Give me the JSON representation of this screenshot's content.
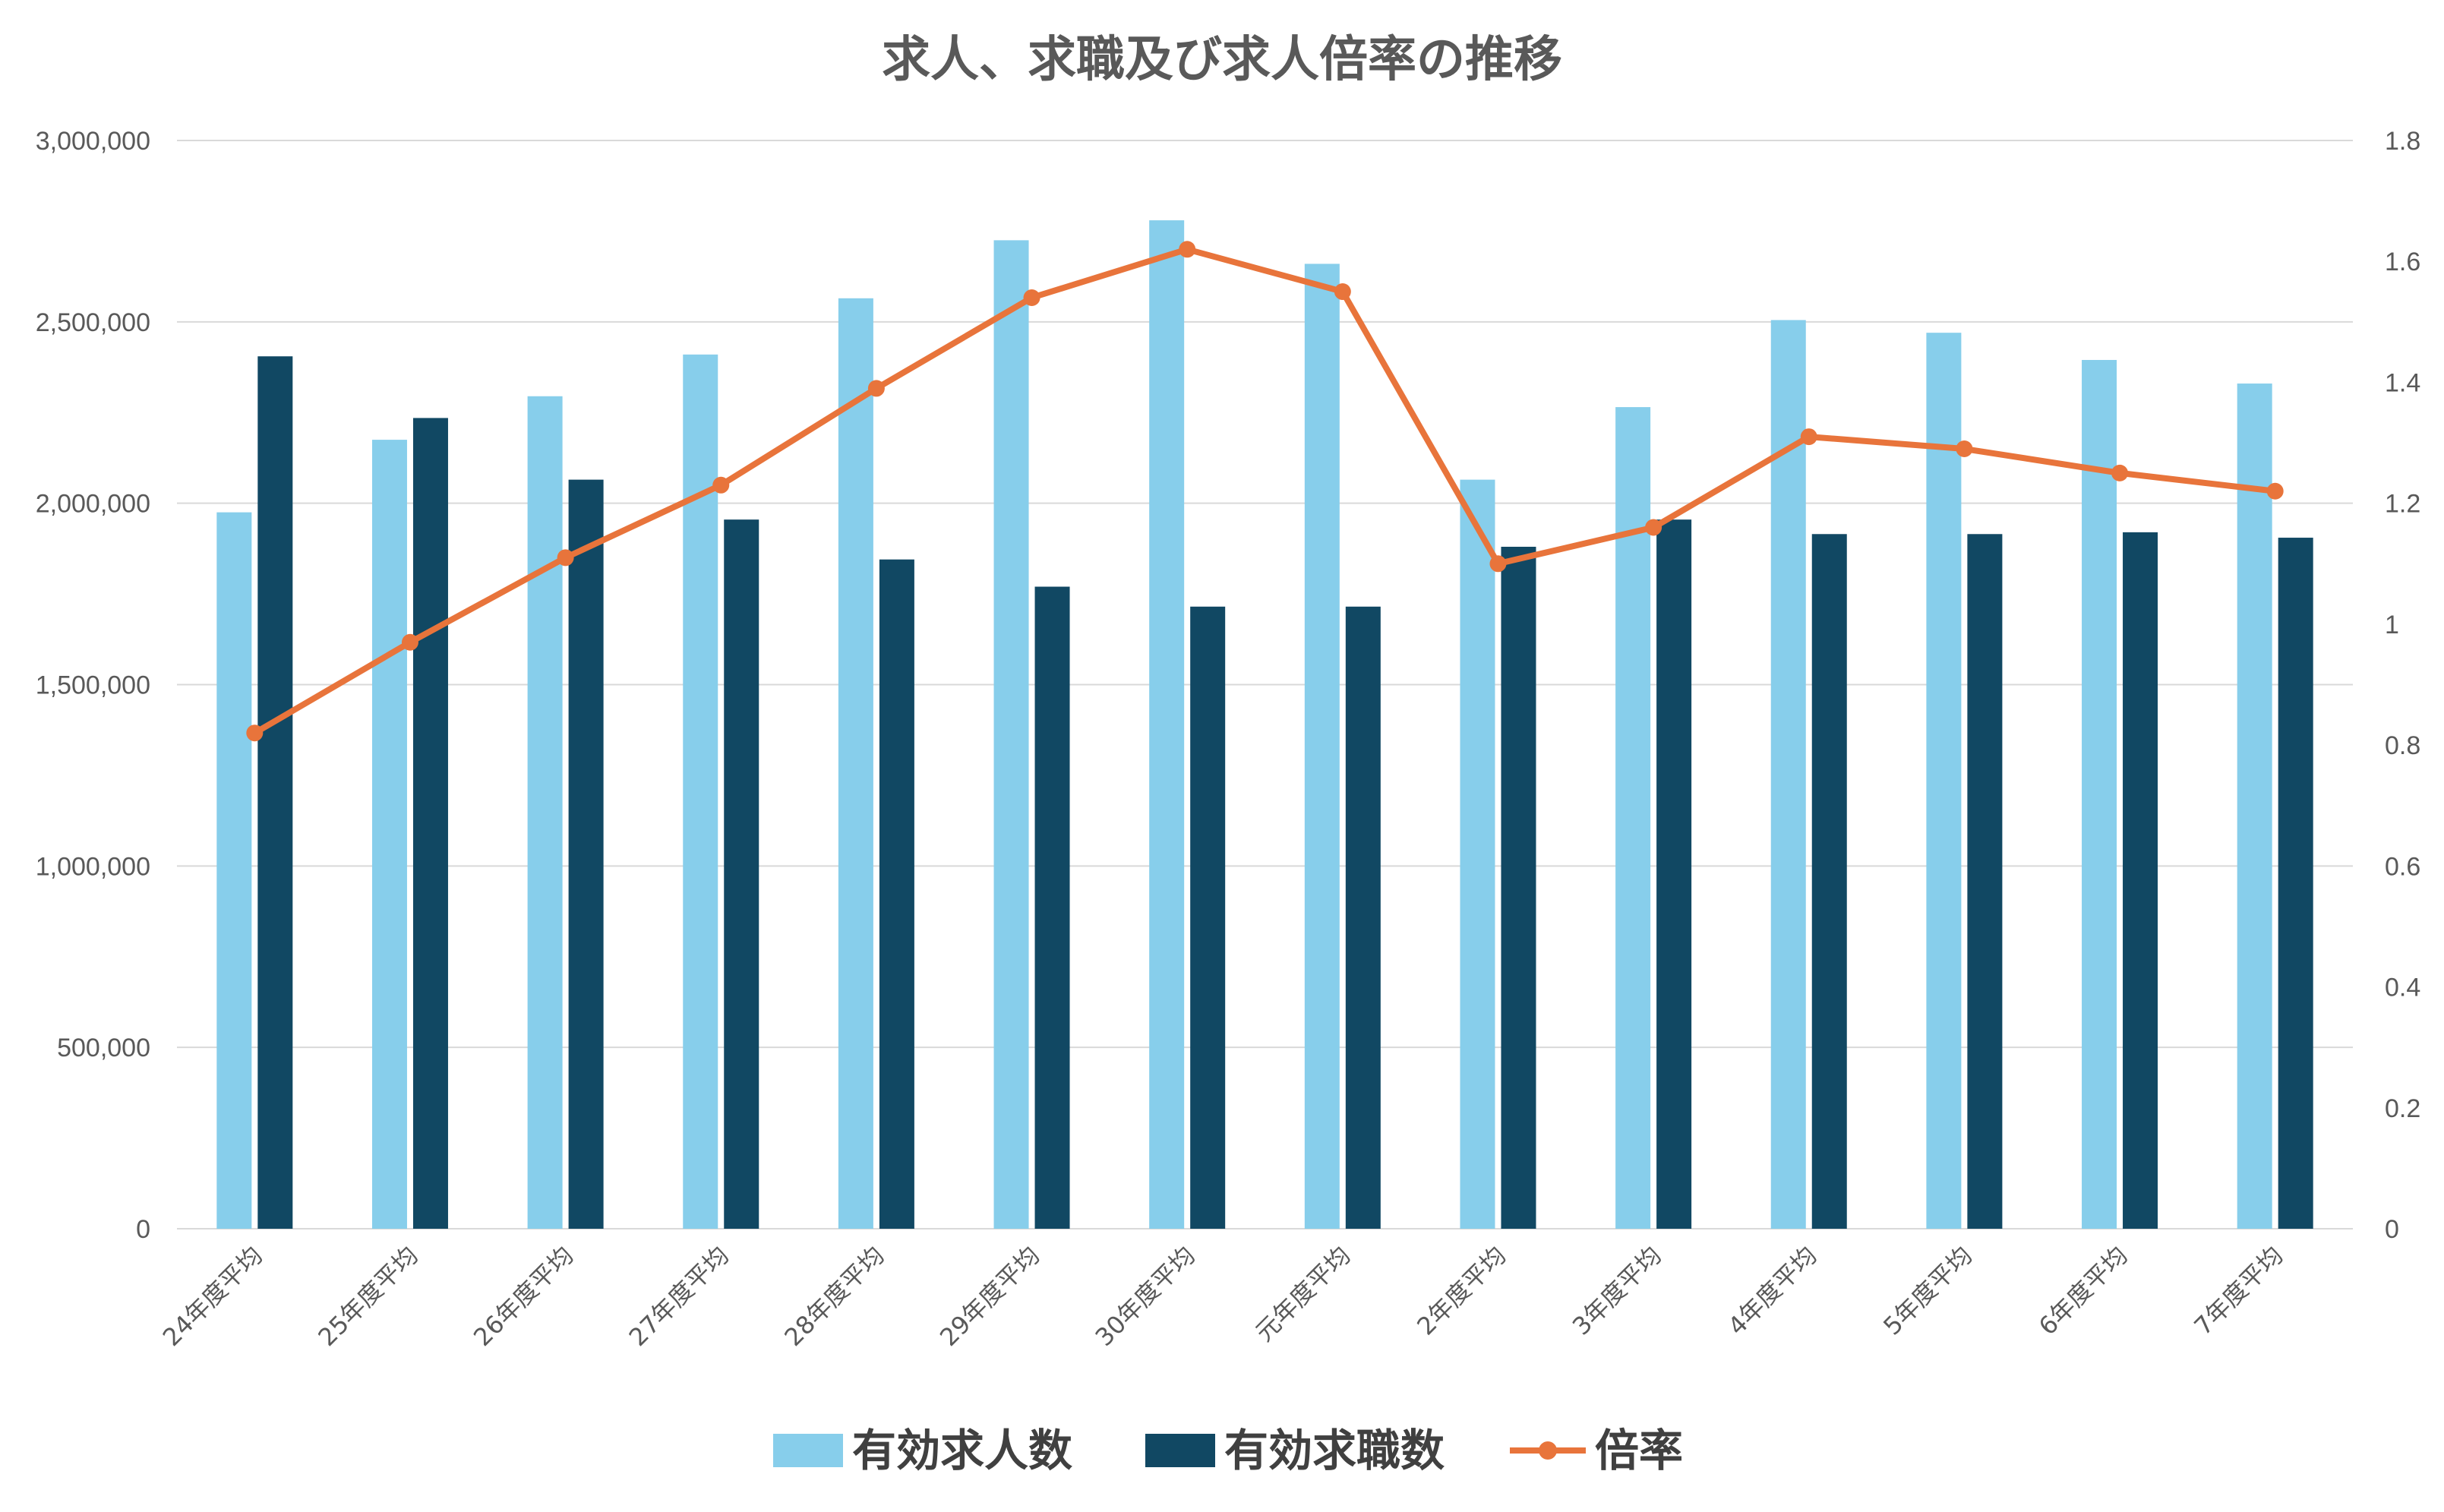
{
  "chart_data": {
    "type": "bar+line",
    "title": "求人、求職及び求人倍率の推移",
    "categories": [
      "24年度平均",
      "25年度平均",
      "26年度平均",
      "27年度平均",
      "28年度平均",
      "29年度平均",
      "30年度平均",
      "元年度平均",
      "2年度平均",
      "3年度平均",
      "4年度平均",
      "5年度平均",
      "6年度平均",
      "7年度平均"
    ],
    "series": [
      {
        "name": "有効求人数",
        "type": "bar",
        "axis": "left",
        "color": "#87CEEB",
        "values": [
          1975000,
          2175000,
          2295000,
          2410000,
          2565000,
          2725000,
          2780000,
          2660000,
          2065000,
          2265000,
          2505000,
          2470000,
          2395000,
          2330000
        ]
      },
      {
        "name": "有効求職数",
        "type": "bar",
        "axis": "left",
        "color": "#114863",
        "values": [
          2405000,
          2235000,
          2065000,
          1955000,
          1845000,
          1770000,
          1715000,
          1715000,
          1880000,
          1955000,
          1915000,
          1915000,
          1920000,
          1905000
        ]
      },
      {
        "name": "倍率",
        "type": "line",
        "axis": "right",
        "color": "#E8743B",
        "values": [
          0.82,
          0.97,
          1.11,
          1.23,
          1.39,
          1.54,
          1.62,
          1.55,
          1.1,
          1.16,
          1.31,
          1.29,
          1.25,
          1.22
        ]
      }
    ],
    "y_left": {
      "min": 0,
      "max": 3000000,
      "ticks": [
        "0",
        "500,000",
        "1,000,000",
        "1,500,000",
        "2,000,000",
        "2,500,000",
        "3,000,000"
      ]
    },
    "y_right": {
      "min": 0,
      "max": 1.8,
      "ticks": [
        "0",
        "0.2",
        "0.4",
        "0.6",
        "0.8",
        "1",
        "1.2",
        "1.4",
        "1.6",
        "1.8"
      ]
    },
    "grid": true,
    "legend": "bottom-center"
  }
}
